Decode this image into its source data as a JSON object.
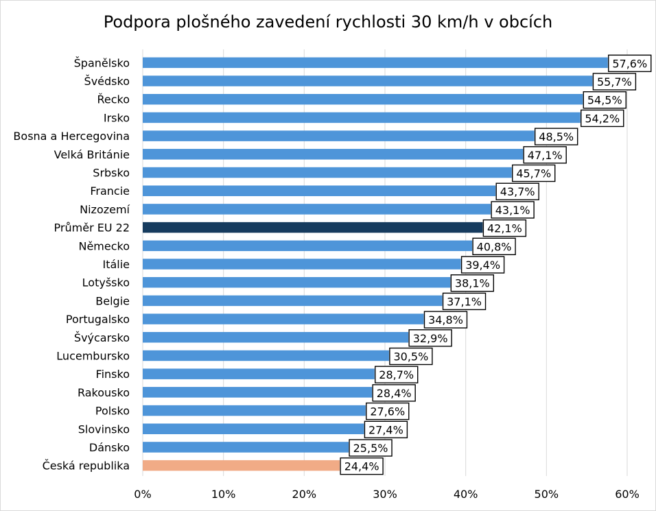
{
  "chart_data": {
    "type": "bar",
    "orientation": "horizontal",
    "title": "Podpora plošného zavedení rychlosti 30 km/h v obcích",
    "categories": [
      "Španělsko",
      "Švédsko",
      "Řecko",
      "Irsko",
      "Bosna a Hercegovina",
      "Velká Británie",
      "Srbsko",
      "Francie",
      "Nizozemí",
      "Průměr EU 22",
      "Německo",
      "Itálie",
      "Lotyšsko",
      "Belgie",
      "Portugalsko",
      "Švýcarsko",
      "Lucembursko",
      "Finsko",
      "Rakousko",
      "Polsko",
      "Slovinsko",
      "Dánsko",
      "Česká republika"
    ],
    "values": [
      57.6,
      55.7,
      54.5,
      54.2,
      48.5,
      47.1,
      45.7,
      43.7,
      43.1,
      42.1,
      40.8,
      39.4,
      38.1,
      37.1,
      34.8,
      32.9,
      30.5,
      28.7,
      28.4,
      27.6,
      27.4,
      25.5,
      24.4
    ],
    "data_labels": [
      "57,6%",
      "55,7%",
      "54,5%",
      "54,2%",
      "48,5%",
      "47,1%",
      "45,7%",
      "43,7%",
      "43,1%",
      "42,1%",
      "40,8%",
      "39,4%",
      "38,1%",
      "37,1%",
      "34,8%",
      "32,9%",
      "30,5%",
      "28,7%",
      "28,4%",
      "27,6%",
      "27,4%",
      "25,5%",
      "24,4%"
    ],
    "xlim": [
      0,
      60
    ],
    "xticks": [
      "0%",
      "10%",
      "20%",
      "30%",
      "40%",
      "50%",
      "60%"
    ],
    "grid": "vertical",
    "colors": {
      "default": "#4e95d9",
      "highlight_average": "#163b5e",
      "highlight_czech": "#f1ab86",
      "grid": "#d9d9d9"
    },
    "highlights": {
      "Průměr EU 22": "highlight_average",
      "Česká republika": "highlight_czech"
    }
  }
}
